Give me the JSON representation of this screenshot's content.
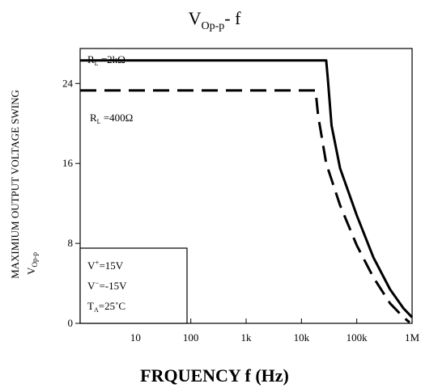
{
  "chart_data": {
    "type": "line",
    "title": {
      "main": "V",
      "sub": "Op-p",
      "tail": "- f"
    },
    "xlabel": "FRQUENCY f (Hz)",
    "ylabel": "MAXIMIUM OUTPUT VOLTAGE SWING",
    "ylabel_symbol": {
      "main": "V",
      "sub": "Op-p"
    },
    "x_scale": "log",
    "xlim": [
      1,
      1000000
    ],
    "ylim": [
      0,
      27.5
    ],
    "x_ticks": [
      {
        "value": 10,
        "label": "10"
      },
      {
        "value": 100,
        "label": "100"
      },
      {
        "value": 1000,
        "label": "1k"
      },
      {
        "value": 10000,
        "label": "10k"
      },
      {
        "value": 100000,
        "label": "100k"
      },
      {
        "value": 1000000,
        "label": "1M"
      }
    ],
    "y_ticks": [
      {
        "value": 0,
        "label": "0"
      },
      {
        "value": 8,
        "label": "8"
      },
      {
        "value": 16,
        "label": "16"
      },
      {
        "value": 24,
        "label": "24"
      }
    ],
    "grid": false,
    "series": [
      {
        "label_main": "R",
        "label_sub": "L",
        "label_tail": " =2kΩ",
        "style": "solid",
        "points": [
          [
            1,
            26.3
          ],
          [
            28000,
            26.3
          ],
          [
            30000,
            24.5
          ],
          [
            35000,
            19.8
          ],
          [
            50000,
            15.5
          ],
          [
            100000,
            10.8
          ],
          [
            200000,
            6.6
          ],
          [
            400000,
            3.4
          ],
          [
            700000,
            1.5
          ],
          [
            1000000,
            0.6
          ]
        ]
      },
      {
        "label_main": "R",
        "label_sub": "L",
        "label_tail": " =400Ω",
        "style": "dashed",
        "points": [
          [
            1,
            23.3
          ],
          [
            18000,
            23.3
          ],
          [
            20000,
            20.8
          ],
          [
            28000,
            16.0
          ],
          [
            50000,
            11.8
          ],
          [
            100000,
            7.8
          ],
          [
            200000,
            4.6
          ],
          [
            400000,
            2.0
          ],
          [
            700000,
            0.6
          ],
          [
            900000,
            0.1
          ]
        ]
      }
    ],
    "conditions": [
      {
        "main": "V",
        "sup": "+",
        "tail": "=15V"
      },
      {
        "main": "V",
        "sup": "−",
        "tail": "=-15V"
      },
      {
        "main": "T",
        "sub": "A",
        "tail": "=25˚C"
      }
    ]
  }
}
